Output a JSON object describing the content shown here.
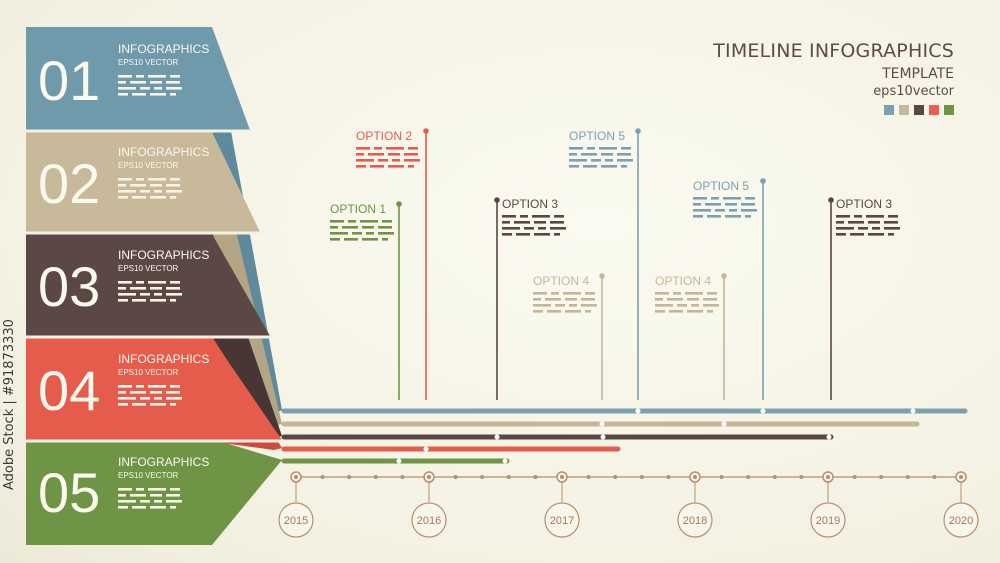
{
  "header": {
    "title": "TIMELINE INFOGRAPHICS",
    "subtitle": "TEMPLATE",
    "eps": "eps10vector",
    "swatches": [
      "#7ba1b0",
      "#c6b89c",
      "#5a4744",
      "#e95e4d",
      "#6f9445"
    ]
  },
  "side_code": "Adobe Stock | #91873330",
  "steps": [
    {
      "number": "01",
      "title": "INFOGRAPHICS",
      "sub": "EPS10  VECTOR",
      "color": "#6f9aab"
    },
    {
      "number": "02",
      "title": "INFOGRAPHICS",
      "sub": "EPS10  VECTOR",
      "color": "#c7b999"
    },
    {
      "number": "03",
      "title": "INFOGRAPHICS",
      "sub": "EPS10  VECTOR",
      "color": "#5b4744"
    },
    {
      "number": "04",
      "title": "INFOGRAPHICS",
      "sub": "EPS10  VECTOR",
      "color": "#e65c4c"
    },
    {
      "number": "05",
      "title": "INFOGRAPHICS",
      "sub": "EPS10  VECTOR",
      "color": "#709445"
    }
  ],
  "options": [
    {
      "label": "OPTION 1",
      "color": "#6f9445"
    },
    {
      "label": "OPTION 2",
      "color": "#e65c4c"
    },
    {
      "label": "OPTION 3",
      "color": "#5a4744"
    },
    {
      "label": "OPTION 4",
      "color": "#c5b698"
    },
    {
      "label": "OPTION 5",
      "color": "#7ba1b0"
    },
    {
      "label": "OPTION 5",
      "color": "#7ba1b0"
    },
    {
      "label": "OPTION 4",
      "color": "#c5b698"
    },
    {
      "label": "OPTION 3",
      "color": "#5a4744"
    }
  ],
  "years": [
    "2015",
    "2016",
    "2017",
    "2018",
    "2019",
    "2020"
  ],
  "axis_color": "#b98e6e"
}
